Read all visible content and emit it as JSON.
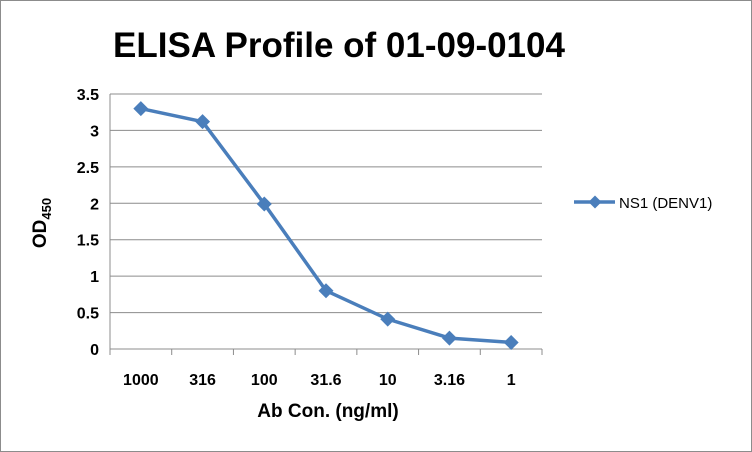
{
  "chart_data": {
    "type": "line",
    "title": "ELISA Profile of 01-09-0104",
    "xlabel": "Ab Con. (ng/ml)",
    "ylabel": "OD",
    "ylabel_subscript": "450",
    "categories": [
      "1000",
      "316",
      "100",
      "31.6",
      "10",
      "3.16",
      "1"
    ],
    "ylim": [
      0,
      3.5
    ],
    "yticks": [
      "0",
      "0.5",
      "1",
      "1.5",
      "2",
      "2.5",
      "3",
      "3.5"
    ],
    "grid": true,
    "legend": "right",
    "series": [
      {
        "name": "NS1 (DENV1)",
        "values": [
          3.3,
          3.12,
          1.99,
          0.8,
          0.41,
          0.15,
          0.09
        ],
        "color": "#4a7ebb",
        "marker": "diamond"
      }
    ]
  }
}
